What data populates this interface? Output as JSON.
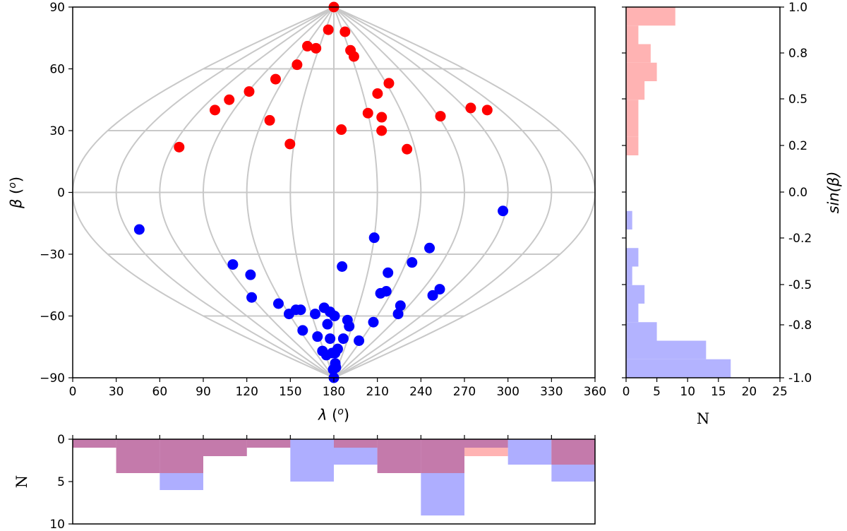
{
  "chart_data": [
    {
      "id": "main",
      "type": "scatter",
      "projection": "sinusoidal",
      "xlabel": "λ (o)",
      "ylabel": "β (o)",
      "xlim": [
        0,
        360
      ],
      "ylim": [
        -90,
        90
      ],
      "xticks": [
        0,
        30,
        60,
        90,
        120,
        150,
        180,
        210,
        240,
        270,
        300,
        330,
        360
      ],
      "yticks": [
        -90,
        -60,
        -30,
        0,
        30,
        60,
        90
      ],
      "grid": true,
      "colors": {
        "north": "#ff0000",
        "south": "#0000ff",
        "grid": "#c8c8c8"
      },
      "series": [
        {
          "name": "north",
          "points": [
            [
              180,
              90
            ],
            [
              65,
              22
            ],
            [
              73,
              40
            ],
            [
              78,
              45
            ],
            [
              91,
              49
            ],
            [
              110,
              55
            ],
            [
              124,
              71
            ],
            [
              126,
              62
            ],
            [
              126,
              35
            ],
            [
              144,
              70
            ],
            [
              147,
              23.5
            ],
            [
              160,
              79
            ],
            [
              186,
              30.5
            ],
            [
              210,
              38.5
            ],
            [
              212,
              69
            ],
            [
              214,
              66
            ],
            [
              217,
              78
            ],
            [
              218,
              30
            ],
            [
              221,
              36.5
            ],
            [
              225,
              48
            ],
            [
              234,
              21
            ],
            [
              243,
              53
            ],
            [
              272,
              37
            ],
            [
              305,
              41
            ],
            [
              318,
              40
            ]
          ]
        },
        {
          "name": "south",
          "points": [
            [
              39,
              -18
            ],
            [
              90,
              -51
            ],
            [
              95,
              -35
            ],
            [
              105,
              -40
            ],
            [
              115,
              -54
            ],
            [
              120,
              -59
            ],
            [
              125,
              -67
            ],
            [
              132,
              -57
            ],
            [
              138,
              -57
            ],
            [
              145,
              -77
            ],
            [
              147,
              -70
            ],
            [
              153,
              -79
            ],
            [
              155,
              -59
            ],
            [
              168,
              -56
            ],
            [
              170,
              -64
            ],
            [
              172,
              -71
            ],
            [
              173,
              -86
            ],
            [
              174,
              -78
            ],
            [
              175,
              -58
            ],
            [
              180,
              -90
            ],
            [
              181,
              -60
            ],
            [
              184,
              -78
            ],
            [
              187,
              -36
            ],
            [
              188,
              -83
            ],
            [
              190,
              -84
            ],
            [
              191,
              -76
            ],
            [
              196,
              -85
            ],
            [
              200,
              -62
            ],
            [
              200,
              -71
            ],
            [
              205,
              -65
            ],
            [
              210,
              -22
            ],
            [
              228,
              -39
            ],
            [
              229,
              -49
            ],
            [
              234,
              -48
            ],
            [
              236,
              -72
            ],
            [
              240,
              -63
            ],
            [
              245,
              -34
            ],
            [
              254,
              -27
            ],
            [
              260,
              -55
            ],
            [
              266,
              -59
            ],
            [
              287,
              -47
            ],
            [
              286,
              -50
            ],
            [
              298,
              -9
            ]
          ]
        }
      ]
    },
    {
      "id": "right-hist",
      "type": "bar",
      "orientation": "horizontal",
      "xlabel": "N",
      "ylabel": "sin(β)",
      "xlim": [
        0,
        25
      ],
      "ylim": [
        -1.0,
        1.0
      ],
      "xticks": [
        "0",
        "5",
        "10",
        "15",
        "20",
        "25"
      ],
      "yticks": [
        "-1.0",
        "-0.8",
        "-0.5",
        "-0.2",
        "0.0",
        "0.2",
        "0.5",
        "0.8",
        "1.0"
      ],
      "bin_width": 0.1,
      "series": [
        {
          "name": "north",
          "color": "#ffb3b3",
          "bins": [
            [
              0.2,
              0.3,
              2
            ],
            [
              0.3,
              0.4,
              2
            ],
            [
              0.4,
              0.5,
              2
            ],
            [
              0.5,
              0.6,
              3
            ],
            [
              0.6,
              0.7,
              5
            ],
            [
              0.7,
              0.8,
              4
            ],
            [
              0.8,
              0.9,
              2
            ],
            [
              0.9,
              1.0,
              8
            ]
          ]
        },
        {
          "name": "south",
          "color": "#b3b3ff",
          "bins": [
            [
              -1.0,
              -0.9,
              17
            ],
            [
              -0.9,
              -0.8,
              13
            ],
            [
              -0.8,
              -0.7,
              5
            ],
            [
              -0.7,
              -0.6,
              2
            ],
            [
              -0.6,
              -0.5,
              3
            ],
            [
              -0.5,
              -0.4,
              1
            ],
            [
              -0.4,
              -0.3,
              2
            ],
            [
              -0.2,
              -0.1,
              1
            ]
          ]
        }
      ]
    },
    {
      "id": "bottom-hist",
      "type": "bar",
      "orientation": "inverted",
      "ylabel": "N",
      "ylim": [
        0,
        10
      ],
      "yticks": [
        "0",
        "5",
        "10"
      ],
      "bin_width": 30,
      "series": [
        {
          "name": "north",
          "color": "#ffa0a0",
          "values": [
            1,
            4,
            4,
            2,
            1,
            0,
            1,
            4,
            4,
            2,
            0,
            3
          ]
        },
        {
          "name": "south",
          "color": "#a0a0ff",
          "values": [
            1,
            4,
            6,
            2,
            1,
            5,
            3,
            4,
            9,
            1,
            3,
            5
          ]
        }
      ]
    }
  ]
}
